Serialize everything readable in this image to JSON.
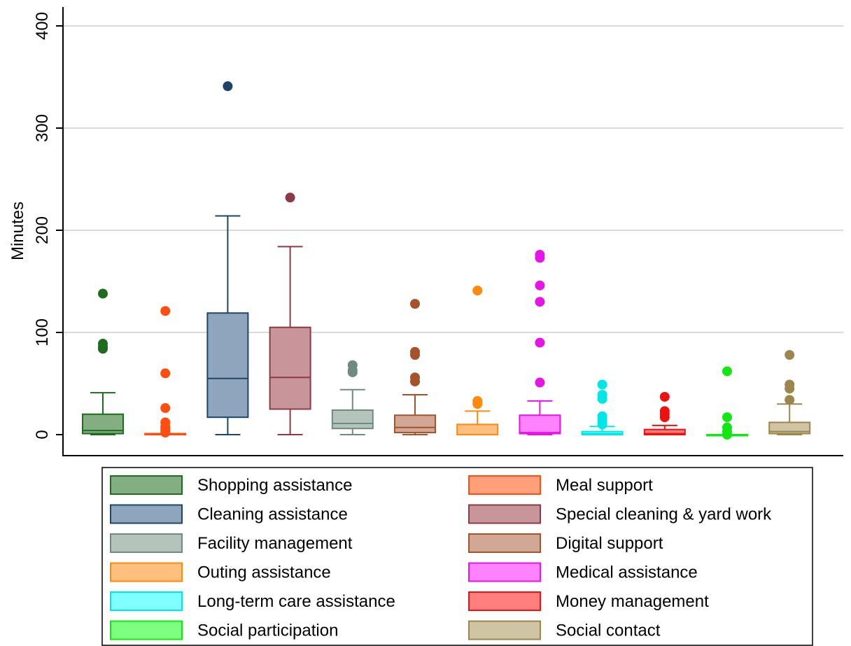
{
  "chart_data": {
    "type": "box",
    "title": "",
    "xlabel": "",
    "ylabel": "Minutes",
    "ylim": [
      -20,
      420
    ],
    "yticks": [
      0,
      100,
      200,
      300,
      400
    ],
    "grid": true,
    "legend_position": "bottom",
    "series": [
      {
        "name": "Shopping assistance",
        "fill": "#82ae82",
        "stroke": "#1f6b1f",
        "whisker_low": 0,
        "q1": 1,
        "median": 4,
        "q3": 20,
        "whisker_high": 41,
        "outliers": [
          84,
          86,
          89,
          138
        ]
      },
      {
        "name": "Meal support",
        "fill": "#ffa07a",
        "stroke": "#ff4f10",
        "whisker_low": 0,
        "q1": 0,
        "median": 0,
        "q3": 1,
        "whisker_high": 1,
        "outliers": [
          2,
          4,
          6,
          8,
          12,
          26,
          60,
          121
        ]
      },
      {
        "name": "Cleaning assistance",
        "fill": "#8fa5bd",
        "stroke": "#1e4566",
        "whisker_low": 0,
        "q1": 17,
        "median": 55,
        "q3": 119,
        "whisker_high": 214,
        "outliers": [
          341
        ]
      },
      {
        "name": "Special cleaning & yard work",
        "fill": "#c8959b",
        "stroke": "#8b3a48",
        "whisker_low": 0,
        "q1": 25,
        "median": 56,
        "q3": 105,
        "whisker_high": 184,
        "outliers": [
          232
        ]
      },
      {
        "name": "Facility management",
        "fill": "#b4c4bd",
        "stroke": "#6f8a80",
        "whisker_low": 0,
        "q1": 6,
        "median": 11,
        "q3": 24,
        "whisker_high": 44,
        "outliers": [
          61,
          63,
          68
        ]
      },
      {
        "name": "Digital support",
        "fill": "#d1a896",
        "stroke": "#a4532b",
        "whisker_low": 0,
        "q1": 2,
        "median": 7,
        "q3": 19,
        "whisker_high": 39,
        "outliers": [
          52,
          56,
          78,
          81,
          128
        ]
      },
      {
        "name": "Outing assistance",
        "fill": "#ffbf7f",
        "stroke": "#ff8a10",
        "whisker_low": 0,
        "q1": 0,
        "median": 0,
        "q3": 10,
        "whisker_high": 23,
        "outliers": [
          30,
          33,
          141
        ]
      },
      {
        "name": "Medical assistance",
        "fill": "#ff82ff",
        "stroke": "#e614e6",
        "whisker_low": 0,
        "q1": 1,
        "median": 2,
        "q3": 19,
        "whisker_high": 33,
        "outliers": [
          51,
          90,
          130,
          146,
          173,
          176
        ]
      },
      {
        "name": "Long-term care assistance",
        "fill": "#7fffff",
        "stroke": "#00e6e6",
        "whisker_low": 0,
        "q1": 0,
        "median": 1,
        "q3": 3,
        "whisker_high": 8,
        "outliers": [
          10,
          14,
          18,
          35,
          39,
          49
        ]
      },
      {
        "name": "Money management",
        "fill": "#ff7f7f",
        "stroke": "#f01010",
        "whisker_low": 0,
        "q1": 0,
        "median": 1,
        "q3": 5,
        "whisker_high": 9,
        "outliers": [
          17,
          20,
          23,
          37
        ]
      },
      {
        "name": "Social participation",
        "fill": "#7fff7f",
        "stroke": "#14e614",
        "whisker_low": 0,
        "q1": 0,
        "median": 0,
        "q3": 0,
        "whisker_high": 0,
        "outliers": [
          0,
          3,
          7,
          17,
          62
        ]
      },
      {
        "name": "Social contact",
        "fill": "#cfc4a3",
        "stroke": "#9c854f",
        "whisker_low": 0,
        "q1": 1,
        "median": 3,
        "q3": 12,
        "whisker_high": 30,
        "outliers": [
          34,
          45,
          49,
          78
        ]
      }
    ]
  }
}
